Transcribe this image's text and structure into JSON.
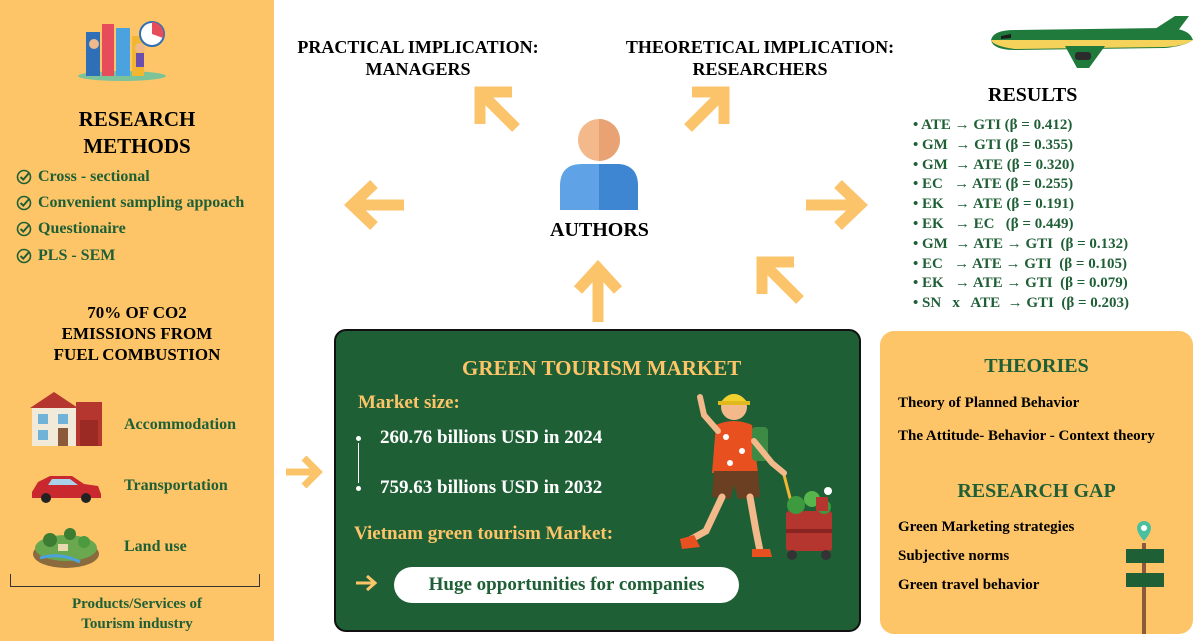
{
  "left_panel": {
    "title_line1": "RESEARCH",
    "title_line2": "METHODS",
    "methods": [
      "Cross - sectional",
      "Convenient sampling appoach",
      "Questionaire",
      "PLS - SEM"
    ],
    "co2_line1": "70% OF CO2",
    "co2_line2": "EMISSIONS FROM",
    "co2_line3": "FUEL COMBUSTION",
    "sectors": [
      "Accommodation",
      "Transportation",
      "Land use"
    ],
    "products_line1": "Products/Services of",
    "products_line2": "Tourism industry"
  },
  "center": {
    "practical_line1": "PRACTICAL IMPLICATION:",
    "practical_line2": "MANAGERS",
    "theoretical_line1": "THEORETICAL IMPLICATION:",
    "theoretical_line2": "RESEARCHERS",
    "authors": "AUTHORS"
  },
  "results": {
    "title": "RESULTS",
    "items": [
      "• ATE → GTI (β = 0.412)",
      "• GM  → GTI (β = 0.355)",
      "• GM  → ATE (β = 0.320)",
      "• EC   → ATE (β = 0.255)",
      "• EK   → ATE (β = 0.191)",
      "• EK   → EC   (β = 0.449)",
      "• GM  → ATE → GTI  (β = 0.132)",
      "• EC   → ATE → GTI  (β = 0.105)",
      "• EK   → ATE → GTI  (β = 0.079)",
      "• SN   x   ATE  → GTI  (β = 0.203)"
    ]
  },
  "market": {
    "title": "GREEN TOURISM MARKET",
    "size_label": "Market size:",
    "value_2024": "260.76 billions USD in 2024",
    "value_2032": "759.63 billions USD in 2032",
    "vietnam_label": "Vietnam green tourism Market:",
    "opportunity": "Huge opportunities for companies"
  },
  "theories": {
    "title": "THEORIES",
    "items": [
      "Theory of Planned Behavior",
      "The Attitude- Behavior - Context theory"
    ],
    "gap_title": "RESEARCH GAP",
    "gap_items": [
      "Green Marketing strategies",
      "Subjective norms",
      "Green travel behavior"
    ]
  },
  "colors": {
    "panel": "#fdc568",
    "dark_green": "#1f5f36",
    "arrow": "#fbc46b",
    "plane": "#1f7a3c"
  }
}
